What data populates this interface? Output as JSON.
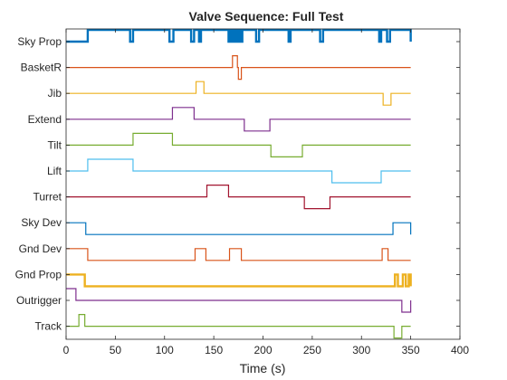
{
  "chart_data": {
    "type": "line",
    "title": "Valve Sequence: Full Test",
    "xlabel": "Time (s)",
    "ylabel": "",
    "xlim": [
      0,
      400
    ],
    "xticks": [
      "0",
      "50",
      "100",
      "150",
      "200",
      "250",
      "300",
      "350",
      "400"
    ],
    "grid": false,
    "legend": "none",
    "categories": [
      "Sky Prop",
      "BasketR",
      "Jib",
      "Extend",
      "Tilt",
      "Lift",
      "Turret",
      "Sky Dev",
      "Gnd Dev",
      "Gnd Prop",
      "Outrigger",
      "Track"
    ],
    "series": [
      {
        "name": "Sky Prop",
        "color": "#0072BD",
        "thick": true,
        "base": 0,
        "steps": [
          [
            0,
            0
          ],
          [
            22,
            1
          ],
          [
            65,
            0
          ],
          [
            68,
            1
          ],
          [
            105,
            0
          ],
          [
            109,
            1
          ],
          [
            127,
            0
          ],
          [
            130,
            1
          ],
          [
            135,
            0
          ],
          [
            137,
            1
          ],
          [
            165,
            0
          ],
          [
            167,
            1
          ],
          [
            169,
            0
          ],
          [
            171,
            1
          ],
          [
            173,
            0
          ],
          [
            175,
            1
          ],
          [
            177,
            0
          ],
          [
            179,
            1
          ],
          [
            193,
            0
          ],
          [
            196,
            1
          ],
          [
            226,
            0
          ],
          [
            228,
            1
          ],
          [
            258,
            0
          ],
          [
            261,
            1
          ],
          [
            318,
            0
          ],
          [
            320,
            1
          ],
          [
            326,
            0
          ],
          [
            329,
            1
          ],
          [
            350,
            0
          ]
        ]
      },
      {
        "name": "BasketR",
        "color": "#D95319",
        "thick": false,
        "base": 0,
        "steps": [
          [
            0,
            0
          ],
          [
            169,
            1
          ],
          [
            174,
            0
          ],
          [
            175,
            -1
          ],
          [
            178,
            0
          ],
          [
            350,
            0
          ]
        ]
      },
      {
        "name": "Jib",
        "color": "#EDB120",
        "thick": false,
        "base": 0,
        "steps": [
          [
            0,
            0
          ],
          [
            132,
            1
          ],
          [
            140,
            0
          ],
          [
            322,
            -1
          ],
          [
            330,
            0
          ],
          [
            350,
            0
          ]
        ]
      },
      {
        "name": "Extend",
        "color": "#7E2F8E",
        "thick": false,
        "base": 0,
        "steps": [
          [
            0,
            0
          ],
          [
            108,
            1
          ],
          [
            130,
            0
          ],
          [
            181,
            -1
          ],
          [
            207,
            0
          ],
          [
            350,
            0
          ]
        ]
      },
      {
        "name": "Tilt",
        "color": "#77AC30",
        "thick": false,
        "base": 0,
        "steps": [
          [
            0,
            0
          ],
          [
            68,
            1
          ],
          [
            108,
            0
          ],
          [
            208,
            -1
          ],
          [
            240,
            0
          ],
          [
            350,
            0
          ]
        ]
      },
      {
        "name": "Lift",
        "color": "#4DBEEE",
        "thick": false,
        "base": 0,
        "steps": [
          [
            0,
            0
          ],
          [
            22,
            1
          ],
          [
            68,
            0
          ],
          [
            270,
            -1
          ],
          [
            320,
            0
          ],
          [
            350,
            0
          ]
        ]
      },
      {
        "name": "Turret",
        "color": "#A2142F",
        "thick": false,
        "base": 0,
        "steps": [
          [
            0,
            0
          ],
          [
            143,
            1
          ],
          [
            165,
            0
          ],
          [
            242,
            -1
          ],
          [
            268,
            0
          ],
          [
            350,
            0
          ]
        ]
      },
      {
        "name": "Sky Dev",
        "color": "#0072BD",
        "thick": false,
        "base": 1,
        "steps": [
          [
            0,
            1
          ],
          [
            20,
            0
          ],
          [
            332,
            1
          ],
          [
            350,
            0
          ]
        ]
      },
      {
        "name": "Gnd Dev",
        "color": "#D95319",
        "thick": false,
        "base": 1,
        "steps": [
          [
            0,
            1
          ],
          [
            22,
            0
          ],
          [
            131,
            1
          ],
          [
            142,
            0
          ],
          [
            166,
            1
          ],
          [
            178,
            0
          ],
          [
            321,
            1
          ],
          [
            327,
            0
          ],
          [
            350,
            0
          ]
        ]
      },
      {
        "name": "Gnd Prop",
        "color": "#EDB120",
        "thick": true,
        "base": 1,
        "steps": [
          [
            0,
            1
          ],
          [
            19,
            0
          ],
          [
            334,
            1
          ],
          [
            337,
            0
          ],
          [
            342,
            1
          ],
          [
            345,
            0
          ],
          [
            348,
            1
          ],
          [
            350,
            0
          ]
        ]
      },
      {
        "name": "Outrigger",
        "color": "#7E2F8E",
        "thick": false,
        "base": 0,
        "steps": [
          [
            0,
            1
          ],
          [
            10,
            0
          ],
          [
            341,
            -1
          ],
          [
            350,
            0
          ]
        ]
      },
      {
        "name": "Track",
        "color": "#77AC30",
        "thick": false,
        "base": 0,
        "steps": [
          [
            0,
            0
          ],
          [
            13,
            1
          ],
          [
            19,
            0
          ],
          [
            333,
            -1
          ],
          [
            341,
            0
          ],
          [
            350,
            0
          ]
        ]
      }
    ]
  }
}
